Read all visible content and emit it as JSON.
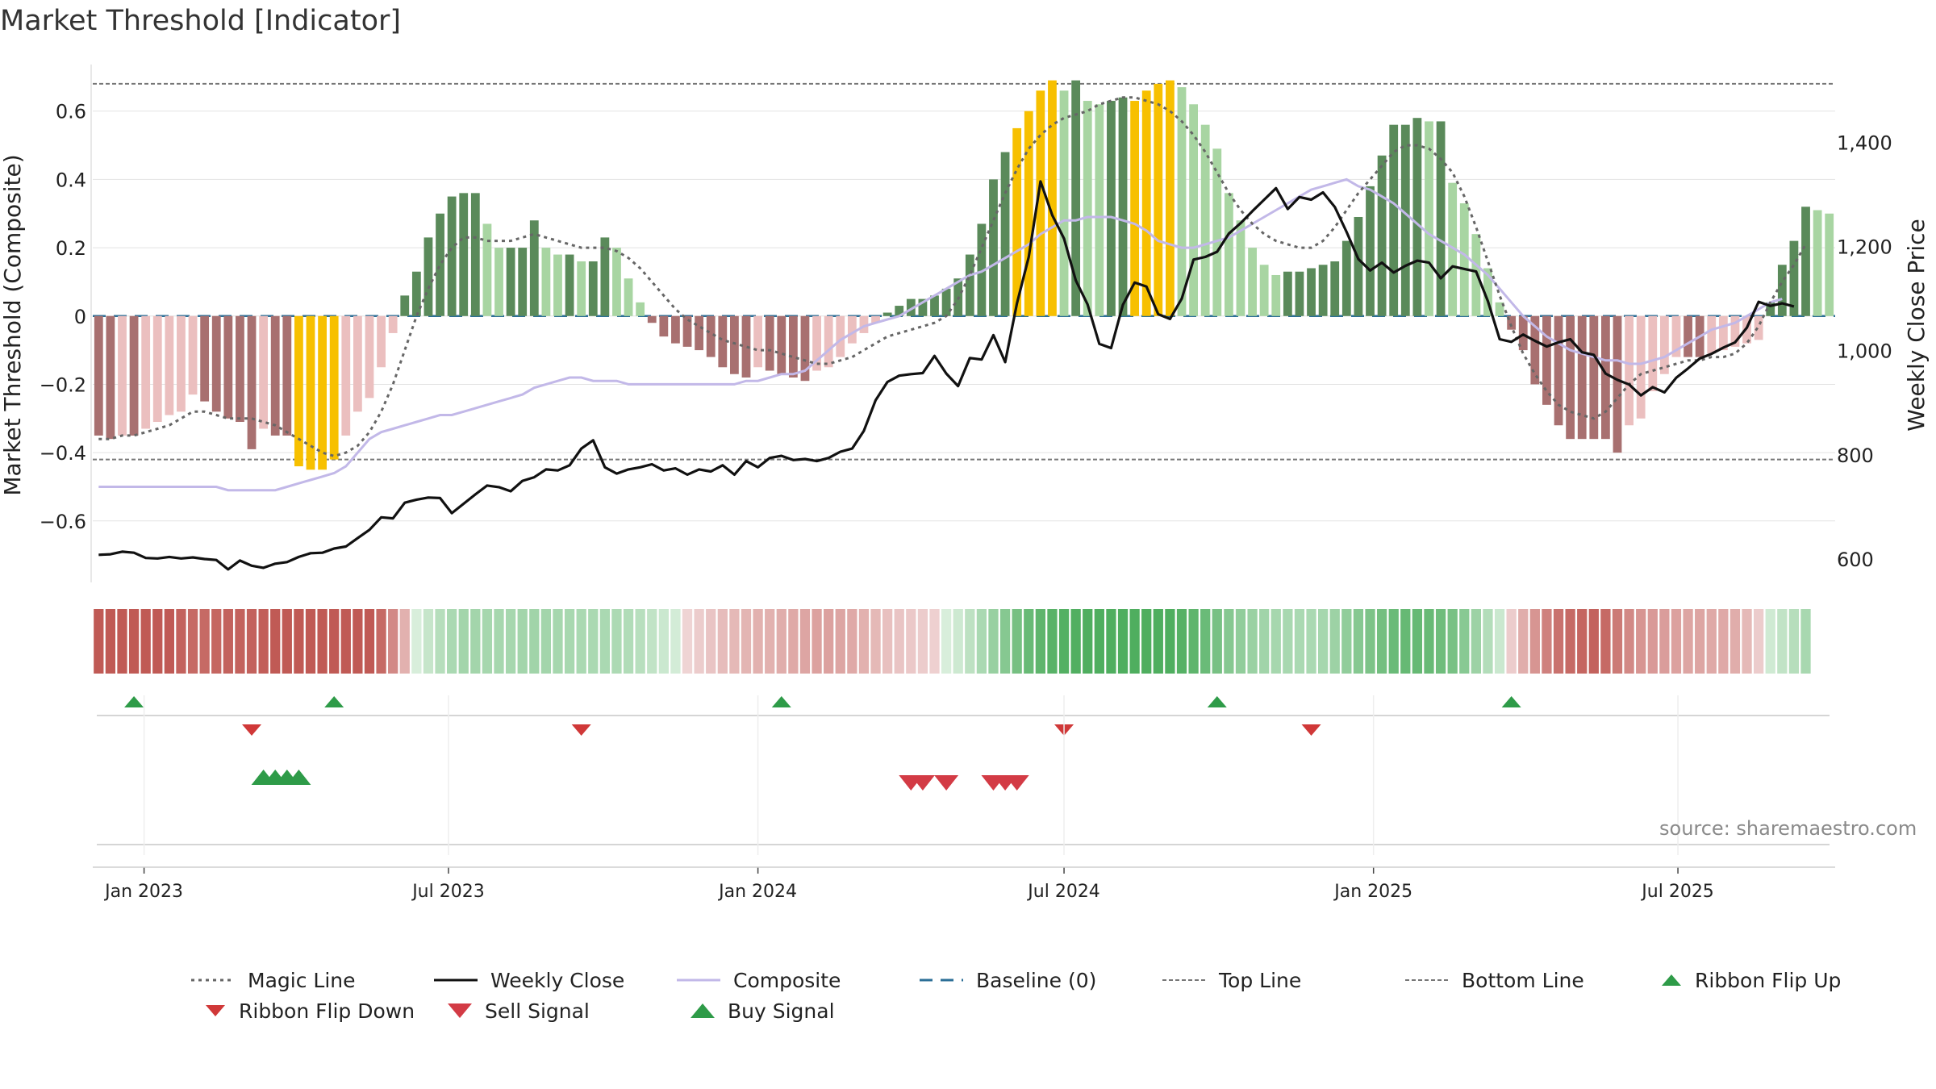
{
  "title": "Market Threshold [Indicator]",
  "source": "source: sharemaestro.com",
  "colors": {
    "pos_dark": "#5a8a5a",
    "pos_light": "#a8d5a2",
    "neg_dark": "#a87070",
    "neg_light": "#ebbfbf",
    "extreme": "#f7c000",
    "weekly_close": "#111111",
    "composite": "#c2b8e8",
    "magic": "#666666",
    "baseline": "#2c6f97",
    "threshold": "#777777",
    "buy": "#2e9b48",
    "sell": "#d33b45",
    "flip_up": "#2e9b48",
    "flip_down": "#d03838"
  },
  "chart_data": {
    "type": "bar",
    "title": "Market Threshold [Indicator]",
    "ylabel": "Market Threshold (Composite)",
    "ylabel_right": "Weekly Close Price",
    "ylim": [
      -0.78,
      0.76
    ],
    "ylim_right": [
      555,
      1565
    ],
    "yticks": [
      0.6,
      0.4,
      0.2,
      0,
      -0.2,
      -0.4,
      -0.6
    ],
    "ytick_labels": [
      "0.6",
      "0.4",
      "0.2",
      "0",
      "−0.2",
      "−0.4",
      "−0.6"
    ],
    "yticks_right": [
      1400,
      1200,
      1000,
      800,
      600
    ],
    "ytick_right_labels": [
      "1,400",
      "1,200",
      "1,000",
      "800",
      "600"
    ],
    "x_start": "2022-12-05",
    "weeks": 144,
    "xticks": [
      "2023-01-01",
      "2023-07-01",
      "2024-01-01",
      "2024-07-01",
      "2025-01-01",
      "2025-07-01"
    ],
    "xtick_labels": [
      "Jan 2023",
      "Jul 2023",
      "Jan 2024",
      "Jul 2024",
      "Jan 2025",
      "Jul 2025"
    ],
    "top_line": 0.68,
    "bottom_line": -0.42,
    "baseline": 0,
    "composite_bars": [
      -0.35,
      -0.36,
      -0.35,
      -0.35,
      -0.33,
      -0.31,
      -0.29,
      -0.28,
      -0.23,
      -0.25,
      -0.28,
      -0.3,
      -0.31,
      -0.39,
      -0.33,
      -0.35,
      -0.35,
      -0.44,
      -0.45,
      -0.45,
      -0.42,
      -0.35,
      -0.28,
      -0.24,
      -0.15,
      -0.05,
      0.06,
      0.13,
      0.23,
      0.3,
      0.35,
      0.36,
      0.36,
      0.27,
      0.2,
      0.2,
      0.2,
      0.28,
      0.2,
      0.18,
      0.18,
      0.16,
      0.16,
      0.23,
      0.2,
      0.11,
      0.04,
      -0.02,
      -0.06,
      -0.08,
      -0.09,
      -0.1,
      -0.12,
      -0.15,
      -0.17,
      -0.18,
      -0.15,
      -0.16,
      -0.17,
      -0.18,
      -0.19,
      -0.16,
      -0.15,
      -0.12,
      -0.08,
      -0.05,
      -0.02,
      0.01,
      0.03,
      0.05,
      0.05,
      0.06,
      0.08,
      0.11,
      0.18,
      0.27,
      0.4,
      0.48,
      0.55,
      0.6,
      0.66,
      0.69,
      0.66,
      0.69,
      0.63,
      0.62,
      0.63,
      0.64,
      0.63,
      0.66,
      0.68,
      0.69,
      0.67,
      0.62,
      0.56,
      0.49,
      0.36,
      0.28,
      0.2,
      0.15,
      0.12,
      0.13,
      0.13,
      0.14,
      0.15,
      0.16,
      0.22,
      0.29,
      0.38,
      0.47,
      0.56,
      0.56,
      0.58,
      0.57,
      0.57,
      0.39,
      0.33,
      0.24,
      0.14,
      0.04,
      -0.04,
      -0.1,
      -0.2,
      -0.26,
      -0.32,
      -0.36,
      -0.36,
      -0.36,
      -0.36,
      -0.4,
      -0.32,
      -0.3,
      -0.22,
      -0.17,
      -0.12,
      -0.12,
      -0.12,
      -0.11,
      -0.1,
      -0.09,
      -0.08,
      -0.07,
      0.04,
      0.15,
      0.22,
      0.32,
      0.31,
      0.3
    ],
    "extreme_weeks": [
      17,
      18,
      19,
      20,
      78,
      79,
      80,
      81,
      88,
      89,
      90,
      91
    ],
    "weekly_close": [
      608,
      609,
      614,
      612,
      602,
      601,
      604,
      601,
      603,
      600,
      598,
      580,
      597,
      587,
      583,
      591,
      594,
      604,
      611,
      612,
      620,
      624,
      640,
      656,
      680,
      678,
      708,
      714,
      718,
      717,
      688,
      706,
      724,
      741,
      738,
      730,
      750,
      757,
      772,
      770,
      780,
      812,
      828,
      776,
      764,
      772,
      776,
      782,
      770,
      774,
      762,
      772,
      768,
      780,
      762,
      788,
      776,
      794,
      798,
      790,
      792,
      788,
      794,
      806,
      812,
      846,
      905,
      940,
      952,
      955,
      957,
      990,
      956,
      932,
      986,
      983,
      1030,
      978,
      1091,
      1180,
      1325,
      1260,
      1215,
      1135,
      1089,
      1013,
      1005,
      1088,
      1131,
      1123,
      1070,
      1061,
      1100,
      1175,
      1180,
      1190,
      1225,
      1245,
      1268,
      1290,
      1312,
      1272,
      1295,
      1290,
      1304,
      1276,
      1228,
      1176,
      1154,
      1169,
      1150,
      1163,
      1173,
      1169,
      1139,
      1162,
      1157,
      1152,
      1095,
      1022,
      1017,
      1031,
      1019,
      1008,
      1016,
      1022,
      997,
      992,
      956,
      944,
      935,
      914,
      930,
      920,
      948,
      966,
      985,
      994,
      1006,
      1016,
      1044,
      1094,
      1086,
      1091,
      1085
    ],
    "composite_line": [
      -0.5,
      -0.5,
      -0.5,
      -0.5,
      -0.5,
      -0.5,
      -0.5,
      -0.5,
      -0.5,
      -0.5,
      -0.5,
      -0.51,
      -0.51,
      -0.51,
      -0.51,
      -0.51,
      -0.5,
      -0.49,
      -0.48,
      -0.47,
      -0.46,
      -0.44,
      -0.4,
      -0.36,
      -0.34,
      -0.33,
      -0.32,
      -0.31,
      -0.3,
      -0.29,
      -0.29,
      -0.28,
      -0.27,
      -0.26,
      -0.25,
      -0.24,
      -0.23,
      -0.21,
      -0.2,
      -0.19,
      -0.18,
      -0.18,
      -0.19,
      -0.19,
      -0.19,
      -0.2,
      -0.2,
      -0.2,
      -0.2,
      -0.2,
      -0.2,
      -0.2,
      -0.2,
      -0.2,
      -0.2,
      -0.19,
      -0.19,
      -0.18,
      -0.17,
      -0.17,
      -0.16,
      -0.13,
      -0.1,
      -0.07,
      -0.05,
      -0.03,
      -0.02,
      -0.01,
      0.0,
      0.02,
      0.04,
      0.06,
      0.08,
      0.1,
      0.12,
      0.13,
      0.15,
      0.17,
      0.19,
      0.21,
      0.24,
      0.26,
      0.28,
      0.28,
      0.29,
      0.29,
      0.29,
      0.28,
      0.27,
      0.25,
      0.22,
      0.21,
      0.2,
      0.2,
      0.21,
      0.22,
      0.23,
      0.25,
      0.27,
      0.29,
      0.31,
      0.33,
      0.35,
      0.37,
      0.38,
      0.39,
      0.4,
      0.38,
      0.37,
      0.35,
      0.33,
      0.3,
      0.27,
      0.24,
      0.22,
      0.2,
      0.18,
      0.15,
      0.12,
      0.08,
      0.04,
      0.0,
      -0.03,
      -0.06,
      -0.08,
      -0.1,
      -0.11,
      -0.12,
      -0.13,
      -0.13,
      -0.14,
      -0.14,
      -0.13,
      -0.12,
      -0.1,
      -0.08,
      -0.06,
      -0.04,
      -0.03,
      -0.02,
      0.0,
      0.02,
      0.04,
      0.05
    ],
    "magic_line": [
      -0.36,
      -0.36,
      -0.35,
      -0.35,
      -0.34,
      -0.33,
      -0.32,
      -0.3,
      -0.28,
      -0.28,
      -0.29,
      -0.3,
      -0.3,
      -0.3,
      -0.31,
      -0.32,
      -0.34,
      -0.36,
      -0.38,
      -0.4,
      -0.41,
      -0.4,
      -0.38,
      -0.34,
      -0.28,
      -0.2,
      -0.1,
      0.0,
      0.08,
      0.15,
      0.2,
      0.23,
      0.23,
      0.22,
      0.22,
      0.22,
      0.23,
      0.24,
      0.23,
      0.22,
      0.21,
      0.2,
      0.2,
      0.2,
      0.19,
      0.17,
      0.14,
      0.1,
      0.06,
      0.02,
      -0.01,
      -0.03,
      -0.05,
      -0.07,
      -0.08,
      -0.09,
      -0.1,
      -0.1,
      -0.11,
      -0.12,
      -0.13,
      -0.14,
      -0.14,
      -0.13,
      -0.12,
      -0.1,
      -0.08,
      -0.06,
      -0.05,
      -0.04,
      -0.03,
      -0.02,
      0.0,
      0.05,
      0.12,
      0.2,
      0.28,
      0.36,
      0.43,
      0.49,
      0.53,
      0.56,
      0.58,
      0.59,
      0.6,
      0.62,
      0.63,
      0.64,
      0.64,
      0.63,
      0.62,
      0.6,
      0.57,
      0.53,
      0.48,
      0.42,
      0.36,
      0.31,
      0.27,
      0.24,
      0.22,
      0.21,
      0.2,
      0.2,
      0.22,
      0.26,
      0.31,
      0.36,
      0.4,
      0.44,
      0.48,
      0.5,
      0.5,
      0.49,
      0.46,
      0.42,
      0.35,
      0.26,
      0.16,
      0.06,
      -0.03,
      -0.11,
      -0.17,
      -0.22,
      -0.26,
      -0.28,
      -0.29,
      -0.3,
      -0.28,
      -0.24,
      -0.2,
      -0.17,
      -0.16,
      -0.15,
      -0.14,
      -0.13,
      -0.13,
      -0.12,
      -0.12,
      -0.11,
      -0.08,
      -0.03,
      0.04,
      0.1,
      0.15,
      0.21
    ],
    "ribbon_flip_up_weeks": [
      3,
      20,
      58,
      95,
      120
    ],
    "ribbon_flip_down_weeks": [
      13,
      41,
      82,
      103
    ],
    "buy_signal_weeks": [
      14,
      15,
      16,
      17
    ],
    "sell_signal_weeks": [
      69,
      70,
      72,
      76,
      77,
      78
    ],
    "legend": [
      "Magic Line",
      "Weekly Close",
      "Composite",
      "Baseline (0)",
      "Top Line",
      "Bottom Line",
      "Ribbon Flip Up",
      "Ribbon Flip Down",
      "Sell Signal",
      "Buy Signal"
    ]
  }
}
